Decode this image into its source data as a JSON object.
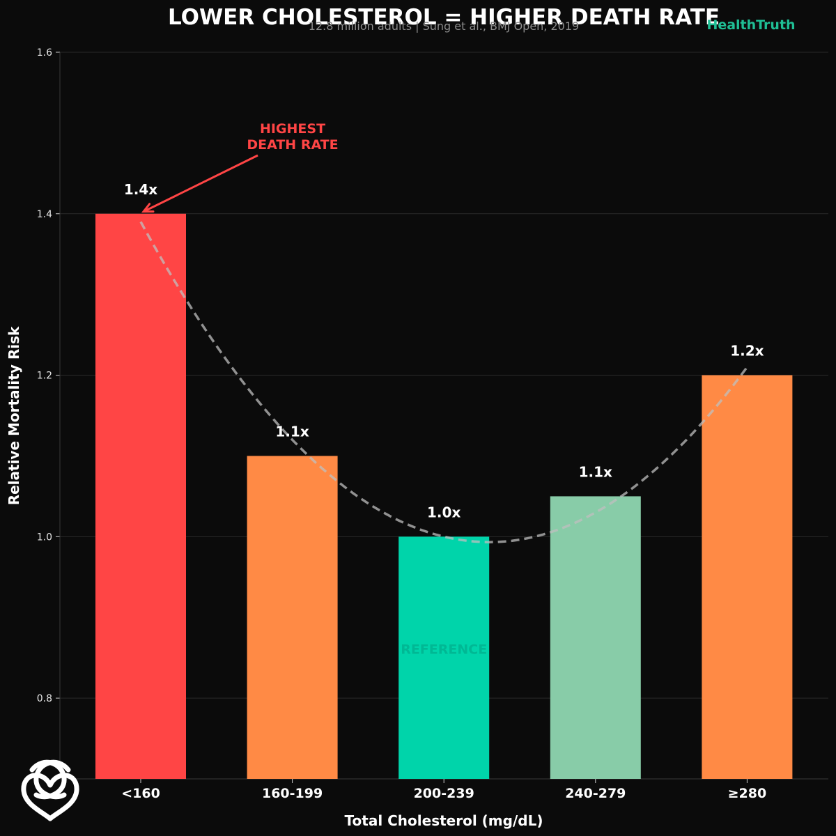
{
  "header": {
    "title": "LOWER CHOLESTEROL = HIGHER DEATH RATE",
    "subtitle": "12.8 million adults | Sung et al., BMJ Open, 2019",
    "brand": "HealthTruth",
    "brand_color": "#1fbf95"
  },
  "colors": {
    "background": "#0b0b0b",
    "grid": "#2a2a2a",
    "trend": "#bfbfbf",
    "annotation": "#ff4545"
  },
  "logo": {
    "icon": "heart-knot-icon"
  },
  "chart_data": {
    "type": "bar",
    "title": "LOWER CHOLESTEROL = HIGHER DEATH RATE",
    "xlabel": "Total Cholesterol (mg/dL)",
    "ylabel": "Relative Mortality Risk",
    "ylim": [
      0.7,
      1.6
    ],
    "yticks": [
      0.8,
      1.0,
      1.2,
      1.4,
      1.6
    ],
    "ytick_labels": [
      "0.8",
      "1.0",
      "1.2",
      "1.4",
      "1.6"
    ],
    "grid": true,
    "categories": [
      "<160",
      "160-199",
      "200-239",
      "240-279",
      "≥280"
    ],
    "values": [
      1.4,
      1.1,
      1.0,
      1.05,
      1.2
    ],
    "value_labels": [
      "1.4x",
      "1.1x",
      "1.0x",
      "1.1x",
      "1.2x"
    ],
    "bar_colors": [
      "#ff4545",
      "#ff8a45",
      "#00d4aa",
      "#88cca8",
      "#ff8a45"
    ],
    "trend_line": {
      "style": "dashed",
      "shape": "U-shaped fit"
    },
    "annotations": [
      {
        "text_lines": [
          "HIGHEST",
          "DEATH RATE"
        ],
        "target_category": "<160",
        "color": "#ff4545"
      }
    ],
    "in_bar_label": {
      "category": "200-239",
      "text": "REFERENCE",
      "color": "#00b894"
    }
  }
}
